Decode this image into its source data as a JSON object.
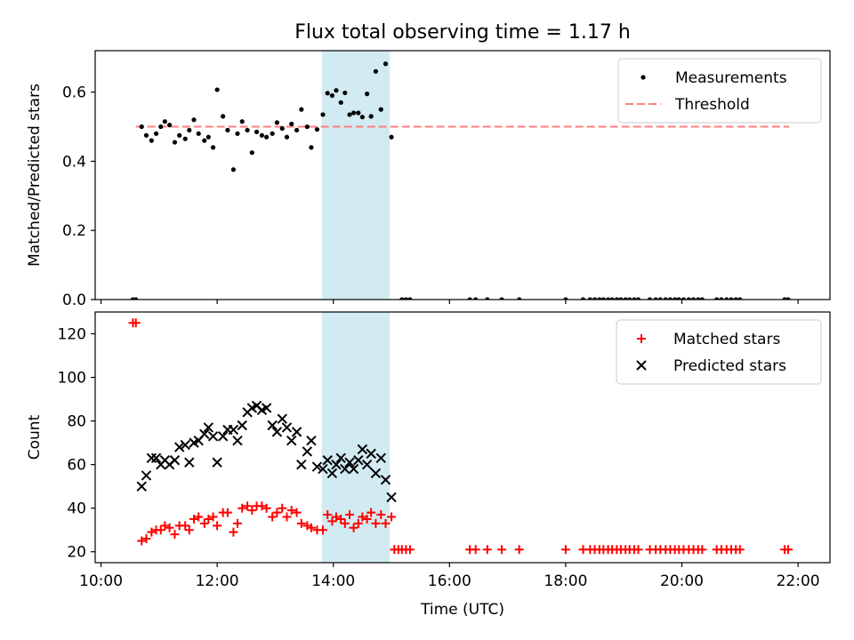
{
  "title": "Flux total observing time = 1.17 h",
  "chart_data": [
    {
      "type": "scatter",
      "panel": "top",
      "title": "Flux total observing time = 1.17 h",
      "xlabel": "",
      "ylabel": "Matched/Predicted stars",
      "xlim": [
        9.9,
        22.55
      ],
      "ylim": [
        0,
        0.72
      ],
      "yticks": [
        0.0,
        0.2,
        0.4,
        0.6
      ],
      "ytick_labels": [
        "0.0",
        "0.2",
        "0.4",
        "0.6"
      ],
      "shaded_span": {
        "x0": 13.8,
        "x1": 14.97,
        "color": "#add8e6"
      },
      "legend_position": "top-right",
      "threshold": {
        "name": "Threshold",
        "y": 0.5,
        "x0": 10.6,
        "x1": 21.85,
        "color": "#ff7f7f",
        "style": "dashed"
      },
      "series": [
        {
          "name": "Measurements",
          "color": "#000000",
          "marker": "dot",
          "points": [
            [
              10.55,
              0.0
            ],
            [
              10.6,
              0.0
            ],
            [
              10.7,
              0.5
            ],
            [
              10.78,
              0.475
            ],
            [
              10.87,
              0.46
            ],
            [
              10.95,
              0.48
            ],
            [
              11.03,
              0.5
            ],
            [
              11.1,
              0.515
            ],
            [
              11.18,
              0.505
            ],
            [
              11.27,
              0.455
            ],
            [
              11.35,
              0.475
            ],
            [
              11.45,
              0.465
            ],
            [
              11.52,
              0.49
            ],
            [
              11.6,
              0.52
            ],
            [
              11.68,
              0.48
            ],
            [
              11.78,
              0.46
            ],
            [
              11.85,
              0.47
            ],
            [
              11.93,
              0.44
            ],
            [
              12.0,
              0.607
            ],
            [
              12.1,
              0.53
            ],
            [
              12.18,
              0.49
            ],
            [
              12.28,
              0.376
            ],
            [
              12.35,
              0.48
            ],
            [
              12.43,
              0.515
            ],
            [
              12.52,
              0.49
            ],
            [
              12.6,
              0.425
            ],
            [
              12.68,
              0.485
            ],
            [
              12.77,
              0.475
            ],
            [
              12.85,
              0.47
            ],
            [
              12.95,
              0.48
            ],
            [
              13.03,
              0.512
            ],
            [
              13.12,
              0.495
            ],
            [
              13.2,
              0.47
            ],
            [
              13.28,
              0.508
            ],
            [
              13.37,
              0.49
            ],
            [
              13.45,
              0.55
            ],
            [
              13.55,
              0.5
            ],
            [
              13.62,
              0.44
            ],
            [
              13.72,
              0.492
            ],
            [
              13.82,
              0.535
            ],
            [
              13.9,
              0.597
            ],
            [
              13.98,
              0.59
            ],
            [
              14.05,
              0.605
            ],
            [
              14.13,
              0.57
            ],
            [
              14.2,
              0.598
            ],
            [
              14.28,
              0.535
            ],
            [
              14.35,
              0.54
            ],
            [
              14.43,
              0.54
            ],
            [
              14.5,
              0.528
            ],
            [
              14.58,
              0.595
            ],
            [
              14.65,
              0.53
            ],
            [
              14.73,
              0.66
            ],
            [
              14.82,
              0.55
            ],
            [
              14.9,
              0.682
            ],
            [
              15.0,
              0.47
            ],
            [
              15.18,
              0.0
            ],
            [
              15.25,
              0.0
            ],
            [
              15.32,
              0.0
            ],
            [
              16.35,
              0.0
            ],
            [
              16.45,
              0.0
            ],
            [
              16.65,
              0.0
            ],
            [
              16.9,
              0.0
            ],
            [
              17.2,
              0.0
            ],
            [
              18.0,
              0.0
            ],
            [
              18.3,
              0.0
            ],
            [
              18.42,
              0.0
            ],
            [
              18.5,
              0.0
            ],
            [
              18.58,
              0.0
            ],
            [
              18.65,
              0.0
            ],
            [
              18.73,
              0.0
            ],
            [
              18.8,
              0.0
            ],
            [
              18.88,
              0.0
            ],
            [
              18.95,
              0.0
            ],
            [
              19.03,
              0.0
            ],
            [
              19.1,
              0.0
            ],
            [
              19.18,
              0.0
            ],
            [
              19.25,
              0.0
            ],
            [
              19.45,
              0.0
            ],
            [
              19.55,
              0.0
            ],
            [
              19.63,
              0.0
            ],
            [
              19.72,
              0.0
            ],
            [
              19.8,
              0.0
            ],
            [
              19.88,
              0.0
            ],
            [
              19.95,
              0.0
            ],
            [
              20.03,
              0.0
            ],
            [
              20.12,
              0.0
            ],
            [
              20.2,
              0.0
            ],
            [
              20.28,
              0.0
            ],
            [
              20.35,
              0.0
            ],
            [
              20.6,
              0.0
            ],
            [
              20.68,
              0.0
            ],
            [
              20.77,
              0.0
            ],
            [
              20.85,
              0.0
            ],
            [
              20.93,
              0.0
            ],
            [
              21.0,
              0.0
            ],
            [
              21.77,
              0.0
            ],
            [
              21.83,
              0.0
            ]
          ]
        }
      ]
    },
    {
      "type": "scatter",
      "panel": "bottom",
      "xlabel": "Time (UTC)",
      "ylabel": "Count",
      "xlim": [
        9.9,
        22.55
      ],
      "ylim": [
        15,
        130
      ],
      "xticks": [
        10,
        12,
        14,
        16,
        18,
        20,
        22
      ],
      "xtick_labels": [
        "10:00",
        "12:00",
        "14:00",
        "16:00",
        "18:00",
        "20:00",
        "22:00"
      ],
      "yticks": [
        20,
        40,
        60,
        80,
        100,
        120
      ],
      "ytick_labels": [
        "20",
        "40",
        "60",
        "80",
        "100",
        "120"
      ],
      "shaded_span": {
        "x0": 13.8,
        "x1": 14.97,
        "color": "#add8e6"
      },
      "legend_position": "top-right",
      "series": [
        {
          "name": "Matched stars",
          "color": "#ff0000",
          "marker": "plus",
          "points": [
            [
              10.55,
              125
            ],
            [
              10.6,
              125
            ],
            [
              10.7,
              25
            ],
            [
              10.78,
              26
            ],
            [
              10.87,
              29
            ],
            [
              10.95,
              30
            ],
            [
              11.03,
              30
            ],
            [
              11.1,
              32
            ],
            [
              11.18,
              31
            ],
            [
              11.27,
              28
            ],
            [
              11.35,
              32
            ],
            [
              11.45,
              32
            ],
            [
              11.52,
              30
            ],
            [
              11.6,
              35
            ],
            [
              11.68,
              36
            ],
            [
              11.78,
              33
            ],
            [
              11.85,
              35
            ],
            [
              11.93,
              36
            ],
            [
              12.0,
              32
            ],
            [
              12.1,
              38
            ],
            [
              12.18,
              38
            ],
            [
              12.28,
              29
            ],
            [
              12.35,
              33
            ],
            [
              12.43,
              40
            ],
            [
              12.52,
              41
            ],
            [
              12.6,
              39
            ],
            [
              12.68,
              41
            ],
            [
              12.77,
              41
            ],
            [
              12.85,
              40
            ],
            [
              12.95,
              36
            ],
            [
              13.03,
              38
            ],
            [
              13.12,
              40
            ],
            [
              13.2,
              36
            ],
            [
              13.28,
              39
            ],
            [
              13.37,
              38
            ],
            [
              13.45,
              33
            ],
            [
              13.55,
              32
            ],
            [
              13.62,
              31
            ],
            [
              13.72,
              30
            ],
            [
              13.82,
              30
            ],
            [
              13.9,
              37
            ],
            [
              13.98,
              34
            ],
            [
              14.05,
              36
            ],
            [
              14.13,
              35
            ],
            [
              14.2,
              33
            ],
            [
              14.28,
              37
            ],
            [
              14.35,
              31
            ],
            [
              14.43,
              33
            ],
            [
              14.5,
              36
            ],
            [
              14.58,
              35
            ],
            [
              14.65,
              38
            ],
            [
              14.73,
              33
            ],
            [
              14.82,
              37
            ],
            [
              14.9,
              33
            ],
            [
              15.0,
              36
            ],
            [
              15.05,
              21
            ],
            [
              15.12,
              21
            ],
            [
              15.18,
              21
            ],
            [
              15.25,
              21
            ],
            [
              15.32,
              21
            ],
            [
              16.35,
              21
            ],
            [
              16.45,
              21
            ],
            [
              16.65,
              21
            ],
            [
              16.9,
              21
            ],
            [
              17.2,
              21
            ],
            [
              18.0,
              21
            ],
            [
              18.3,
              21
            ],
            [
              18.42,
              21
            ],
            [
              18.5,
              21
            ],
            [
              18.58,
              21
            ],
            [
              18.65,
              21
            ],
            [
              18.73,
              21
            ],
            [
              18.8,
              21
            ],
            [
              18.88,
              21
            ],
            [
              18.95,
              21
            ],
            [
              19.03,
              21
            ],
            [
              19.1,
              21
            ],
            [
              19.18,
              21
            ],
            [
              19.25,
              21
            ],
            [
              19.45,
              21
            ],
            [
              19.55,
              21
            ],
            [
              19.63,
              21
            ],
            [
              19.72,
              21
            ],
            [
              19.8,
              21
            ],
            [
              19.88,
              21
            ],
            [
              19.95,
              21
            ],
            [
              20.03,
              21
            ],
            [
              20.12,
              21
            ],
            [
              20.2,
              21
            ],
            [
              20.28,
              21
            ],
            [
              20.35,
              21
            ],
            [
              20.6,
              21
            ],
            [
              20.68,
              21
            ],
            [
              20.77,
              21
            ],
            [
              20.85,
              21
            ],
            [
              20.93,
              21
            ],
            [
              21.0,
              21
            ],
            [
              21.77,
              21
            ],
            [
              21.83,
              21
            ]
          ]
        },
        {
          "name": "Predicted stars",
          "color": "#000000",
          "marker": "x",
          "points": [
            [
              10.7,
              50
            ],
            [
              10.78,
              55
            ],
            [
              10.87,
              63
            ],
            [
              10.95,
              63
            ],
            [
              11.03,
              60
            ],
            [
              11.1,
              62
            ],
            [
              11.18,
              60
            ],
            [
              11.27,
              62
            ],
            [
              11.35,
              68
            ],
            [
              11.45,
              69
            ],
            [
              11.52,
              61
            ],
            [
              11.6,
              70
            ],
            [
              11.68,
              71
            ],
            [
              11.78,
              74
            ],
            [
              11.85,
              77
            ],
            [
              11.93,
              73
            ],
            [
              12.0,
              61
            ],
            [
              12.1,
              73
            ],
            [
              12.18,
              76
            ],
            [
              12.28,
              76
            ],
            [
              12.35,
              71
            ],
            [
              12.43,
              78
            ],
            [
              12.52,
              84
            ],
            [
              12.6,
              86
            ],
            [
              12.68,
              87
            ],
            [
              12.77,
              85
            ],
            [
              12.85,
              86
            ],
            [
              12.95,
              78
            ],
            [
              13.03,
              75
            ],
            [
              13.12,
              81
            ],
            [
              13.2,
              77
            ],
            [
              13.28,
              71
            ],
            [
              13.37,
              75
            ],
            [
              13.45,
              60
            ],
            [
              13.55,
              66
            ],
            [
              13.62,
              71
            ],
            [
              13.72,
              59
            ],
            [
              13.82,
              58
            ],
            [
              13.9,
              62
            ],
            [
              13.98,
              56
            ],
            [
              14.05,
              60
            ],
            [
              14.13,
              63
            ],
            [
              14.2,
              58
            ],
            [
              14.28,
              61
            ],
            [
              14.35,
              58
            ],
            [
              14.43,
              62
            ],
            [
              14.5,
              67
            ],
            [
              14.58,
              60
            ],
            [
              14.65,
              65
            ],
            [
              14.73,
              56
            ],
            [
              14.82,
              63
            ],
            [
              14.9,
              53
            ],
            [
              15.0,
              45
            ]
          ]
        }
      ]
    }
  ]
}
